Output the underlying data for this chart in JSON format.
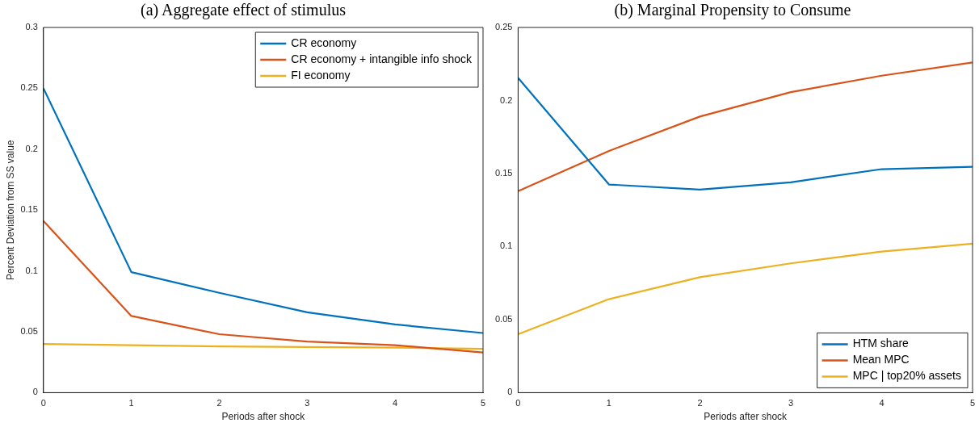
{
  "chart_data": [
    {
      "type": "line",
      "title": "(a) Aggregate effect of stimulus",
      "xlabel": "Periods after shock",
      "ylabel": "Percent Deviation from SS value",
      "x": [
        0,
        1,
        2,
        3,
        4,
        5
      ],
      "xlim": [
        0,
        5
      ],
      "xticks": [
        0,
        1,
        2,
        3,
        4,
        5
      ],
      "ylim": [
        0,
        0.3
      ],
      "yticks": [
        0,
        0.05,
        0.1,
        0.15,
        0.2,
        0.25,
        0.3
      ],
      "grid": false,
      "legend": "top right",
      "marker": "none",
      "line_style": "solid",
      "series": [
        {
          "name": "CR economy",
          "color": "#0072bd",
          "values": [
            0.25,
            0.099,
            0.082,
            0.066,
            0.056,
            0.049
          ]
        },
        {
          "name": "CR economy + intangible info shock",
          "color": "#d95319",
          "values": [
            0.141,
            0.063,
            0.048,
            0.042,
            0.039,
            0.033
          ]
        },
        {
          "name": "FI economy",
          "color": "#edb120",
          "values": [
            0.04,
            0.039,
            0.038,
            0.0375,
            0.037,
            0.036
          ]
        }
      ]
    },
    {
      "type": "line",
      "title": "(b) Marginal Propensity to Consume",
      "xlabel": "Periods after shock",
      "x": [
        0,
        1,
        2,
        3,
        4,
        5
      ],
      "xlim": [
        0,
        5
      ],
      "xticks": [
        0,
        1,
        2,
        3,
        4,
        5
      ],
      "ylim": [
        0,
        0.25
      ],
      "yticks": [
        0,
        0.05,
        0.1,
        0.15,
        0.2,
        0.25
      ],
      "grid": false,
      "legend": "bottom right",
      "marker": "none",
      "line_style": "solid",
      "series": [
        {
          "name": "HTM share",
          "color": "#0072bd",
          "values": [
            0.2155,
            0.1425,
            0.139,
            0.144,
            0.153,
            0.1546
          ]
        },
        {
          "name": "Mean MPC",
          "color": "#d95319",
          "values": [
            0.138,
            0.1655,
            0.189,
            0.2057,
            0.217,
            0.226
          ]
        },
        {
          "name": "MPC | top20% assets",
          "color": "#edb120",
          "values": [
            0.04,
            0.064,
            0.079,
            0.0885,
            0.0966,
            0.102
          ]
        }
      ]
    }
  ]
}
